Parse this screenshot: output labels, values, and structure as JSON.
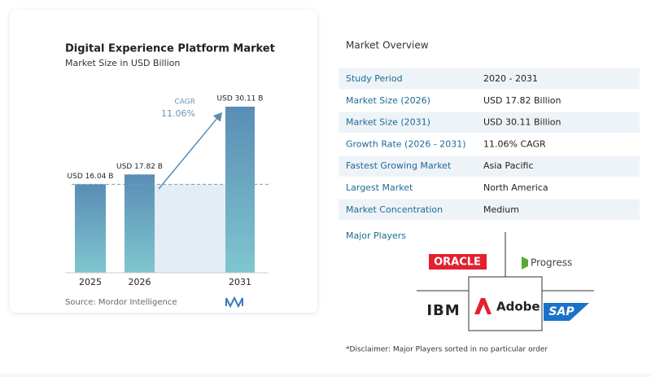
{
  "chart_data": {
    "type": "bar",
    "title": "Digital Experience Platform Market",
    "subtitle": "Market Size in USD Billion",
    "categories": [
      "2025",
      "2026",
      "2031"
    ],
    "values": [
      16.04,
      17.82,
      30.11
    ],
    "value_labels": [
      "USD 16.04 B",
      "USD 17.82 B",
      "USD 30.11 B"
    ],
    "annotation": {
      "label": "CAGR",
      "value": "11.06%"
    },
    "source": "Source: Mordor Intelligence"
  },
  "overview": {
    "title": "Market Overview",
    "rows": [
      [
        "Study Period",
        "2020 - 2031"
      ],
      [
        "Market Size (2026)",
        "USD 17.82 Billion"
      ],
      [
        "Market Size (2031)",
        "USD 30.11 Billion"
      ],
      [
        "Growth Rate (2026 - 2031)",
        "11.06% CAGR"
      ],
      [
        "Fastest Growing Market",
        "Asia Pacific"
      ],
      [
        "Largest Market",
        "North America"
      ],
      [
        "Market Concentration",
        "Medium"
      ]
    ]
  },
  "major_players": {
    "title": "Major Players",
    "items": [
      "ORACLE",
      "Progress",
      "IBM",
      "Adobe",
      "SAP"
    ]
  },
  "disclaimer": "*Disclaimer: Major Players sorted in no particular order"
}
